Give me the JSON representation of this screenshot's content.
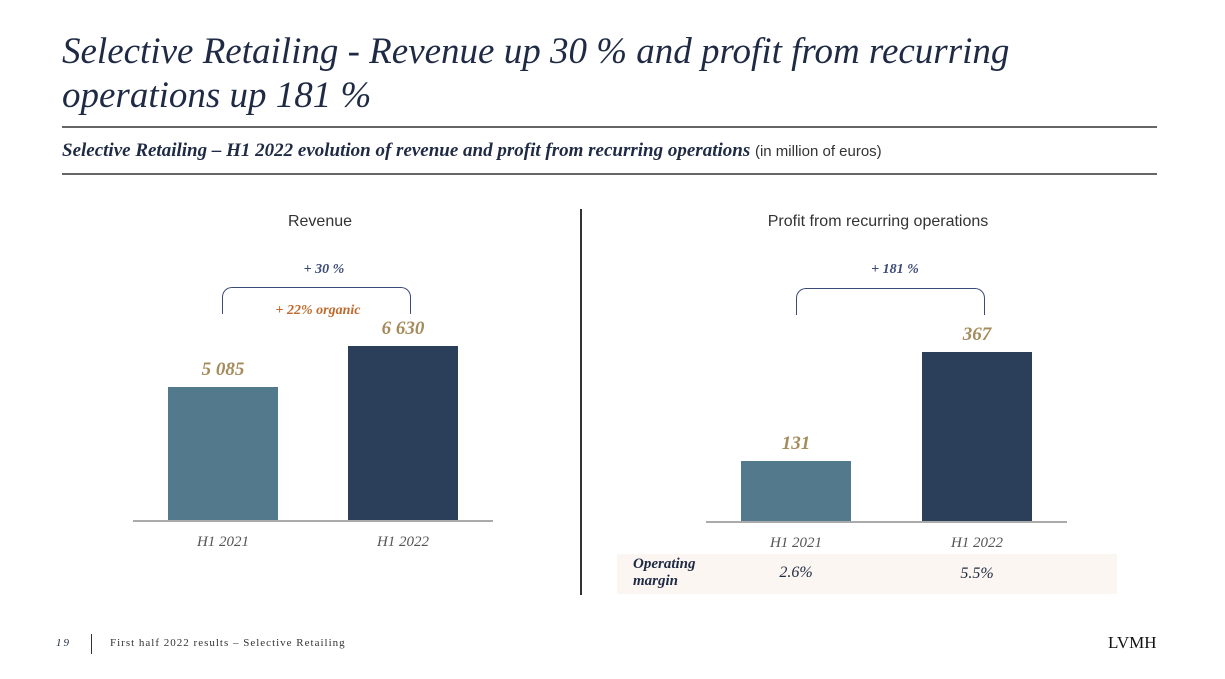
{
  "title": "Selective Retailing - Revenue up 30 % and profit from recurring operations up 181 %",
  "subtitle": "Selective Retailing – H1 2022 evolution of revenue and profit from recurring operations",
  "subtitle_unit": "(in million of euros)",
  "colors": {
    "h1_2021": "#527a8c",
    "h1_2022": "#2c3f5a",
    "value_label": "#a58a5a",
    "growth": "#3c4a78",
    "organic": "#c0692c"
  },
  "chart_data": [
    {
      "type": "bar",
      "title": "Revenue",
      "categories": [
        "H1 2021",
        "H1 2022"
      ],
      "values": [
        5085,
        6630
      ],
      "value_labels": [
        "5 085",
        "6 630"
      ],
      "annotations": [
        "+ 30 %",
        "+ 22% organic"
      ]
    },
    {
      "type": "bar",
      "title": "Profit from recurring operations",
      "categories": [
        "H1 2021",
        "H1 2022"
      ],
      "values": [
        131,
        367
      ],
      "value_labels": [
        "131",
        "367"
      ],
      "annotations": [
        "+ 181 %"
      ]
    }
  ],
  "operating_margin": {
    "label": "Operating margin",
    "values": [
      "2.6%",
      "5.5%"
    ]
  },
  "footer": {
    "page": "19",
    "text": "First half 2022 results – Selective Retailing",
    "logo": "LVMH"
  }
}
